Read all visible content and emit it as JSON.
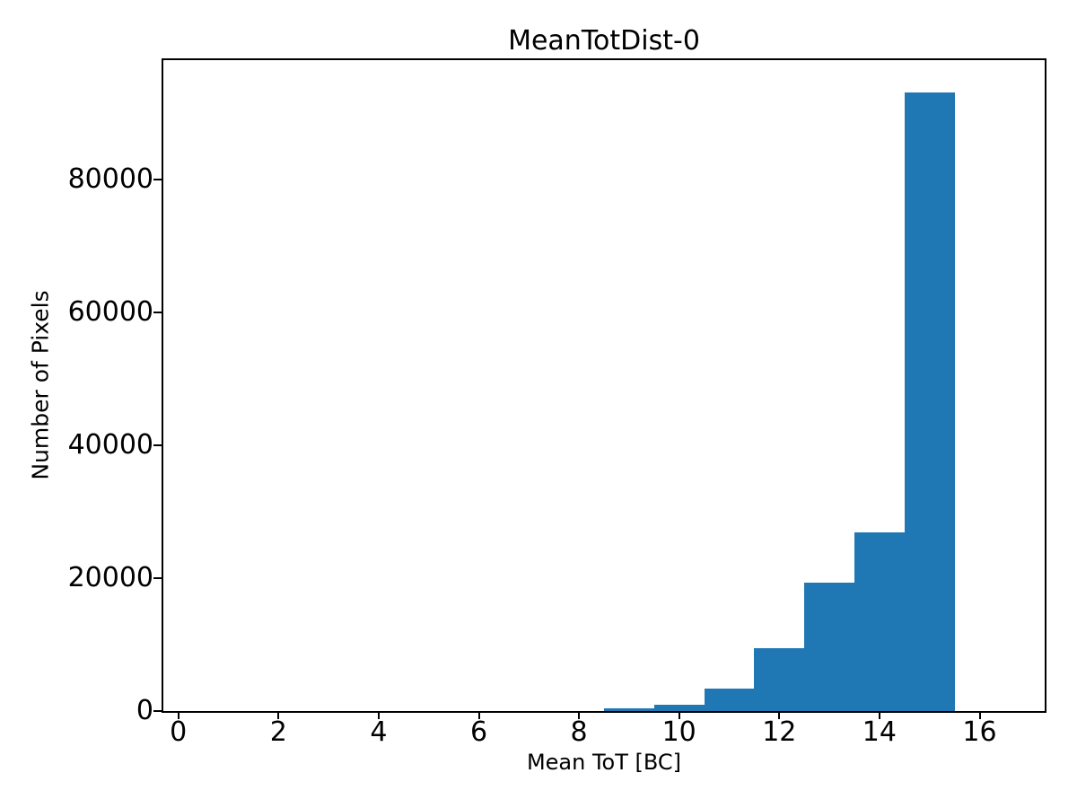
{
  "chart_data": {
    "type": "bar",
    "subtype": "histogram",
    "title": "MeanTotDist-0",
    "xlabel": "Mean ToT [BC]",
    "ylabel": "Number of Pixels",
    "bar_color": "#1f77b4",
    "axis_color": "#000000",
    "background_color": "#ffffff",
    "grid": false,
    "bin_edges": [
      0.5,
      1.5,
      2.5,
      3.5,
      4.5,
      5.5,
      6.5,
      7.5,
      8.5,
      9.5,
      10.5,
      11.5,
      12.5,
      13.5,
      14.5,
      15.5,
      16.5
    ],
    "counts": [
      0,
      0,
      0,
      0,
      0,
      0,
      0,
      0,
      350,
      950,
      3400,
      9500,
      19300,
      26900,
      93200,
      0
    ],
    "xlim": [
      -0.3,
      17.3
    ],
    "ylim": [
      0,
      98000
    ],
    "xticks": [
      0,
      2,
      4,
      6,
      8,
      10,
      12,
      14,
      16
    ],
    "xtick_labels": [
      "0",
      "2",
      "4",
      "6",
      "8",
      "10",
      "12",
      "14",
      "16"
    ],
    "yticks": [
      0,
      20000,
      40000,
      60000,
      80000
    ],
    "ytick_labels": [
      "0",
      "20000",
      "40000",
      "60000",
      "80000"
    ]
  }
}
